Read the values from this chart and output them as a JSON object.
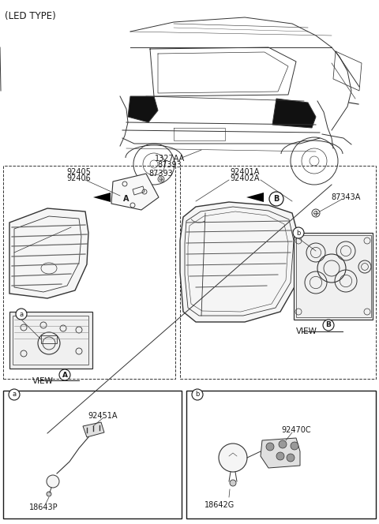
{
  "title": "(LED TYPE)",
  "bg_color": "#ffffff",
  "text_color": "#1a1a1a",
  "line_color": "#333333",
  "gray_color": "#888888",
  "labels": {
    "top_label1": "1327AA",
    "top_label2": "87393",
    "left_top_label1": "92405",
    "left_top_label2": "92406",
    "right_top_label1": "92401A",
    "right_top_label2": "92402A",
    "right_label": "87343A",
    "view_a": "VIEW",
    "view_b": "VIEW",
    "circle_A": "A",
    "circle_B": "B",
    "circle_a": "a",
    "circle_b": "b",
    "box_a_label1": "92451A",
    "box_a_label2": "18643P",
    "box_b_label1": "18642G",
    "box_b_label2": "92470C"
  },
  "font_title": 8.5,
  "font_label": 7.0,
  "font_view": 7.5
}
